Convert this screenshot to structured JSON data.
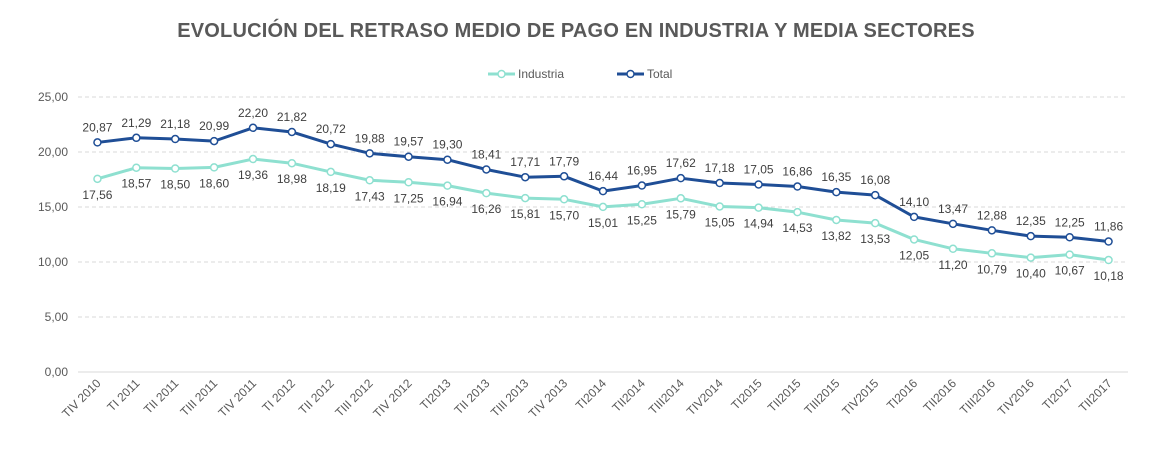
{
  "chart_data": {
    "type": "line",
    "title": "EVOLUCIÓN DEL RETRASO MEDIO DE PAGO EN INDUSTRIA Y MEDIA SECTORES",
    "categories": [
      "TIV 2010",
      "TI 2011",
      "TII 2011",
      "TIII 2011",
      "TIV 2011",
      "TI 2012",
      "TII 2012",
      "TIII 2012",
      "TIV 2012",
      "TI2013",
      "TII 2013",
      "TIII 2013",
      "TIV 2013",
      "TI2014",
      "TII2014",
      "TIII2014",
      "TIV2014",
      "TI2015",
      "TII2015",
      "TIII2015",
      "TIV2015",
      "TI2016",
      "TII2016",
      "TIII2016",
      "TIV2016",
      "TI2017",
      "TII2017"
    ],
    "series": [
      {
        "name": "Industria",
        "color": "#8ee0d0",
        "values": [
          17.56,
          18.57,
          18.5,
          18.6,
          19.36,
          18.98,
          18.19,
          17.43,
          17.25,
          16.94,
          16.26,
          15.81,
          15.7,
          15.01,
          15.25,
          15.79,
          15.05,
          14.94,
          14.53,
          13.82,
          13.53,
          12.05,
          11.2,
          10.79,
          10.4,
          10.67,
          10.18
        ],
        "labels": [
          "17,56",
          "18,57",
          "18,50",
          "18,60",
          "19,36",
          "18,98",
          "18,19",
          "17,43",
          "17,25",
          "16,94",
          "16,26",
          "15,81",
          "15,70",
          "15,01",
          "15,25",
          "15,79",
          "15,05",
          "14,94",
          "14,53",
          "13,82",
          "13,53",
          "12,05",
          "11,20",
          "10,79",
          "10,40",
          "10,67",
          "10,18"
        ]
      },
      {
        "name": "Total",
        "color": "#1f4e96",
        "values": [
          20.87,
          21.29,
          21.18,
          20.99,
          22.2,
          21.82,
          20.72,
          19.88,
          19.57,
          19.3,
          18.41,
          17.71,
          17.79,
          16.44,
          16.95,
          17.62,
          17.18,
          17.05,
          16.86,
          16.35,
          16.08,
          14.1,
          13.47,
          12.88,
          12.35,
          12.25,
          11.86
        ],
        "labels": [
          "20,87",
          "21,29",
          "21,18",
          "20,99",
          "22,20",
          "21,82",
          "20,72",
          "19,88",
          "19,57",
          "19,30",
          "18,41",
          "17,71",
          "17,79",
          "16,44",
          "16,95",
          "17,62",
          "17,18",
          "17,05",
          "16,86",
          "16,35",
          "16,08",
          "14,10",
          "13,47",
          "12,88",
          "12,35",
          "12,25",
          "11,86"
        ]
      }
    ],
    "ylim": [
      0,
      25
    ],
    "yticks": [
      0,
      5,
      10,
      15,
      20,
      25
    ],
    "ytick_labels": [
      "0,00",
      "5,00",
      "10,00",
      "15,00",
      "20,00",
      "25,00"
    ],
    "grid": true,
    "grid_style": "dashed",
    "legend": "top-center"
  }
}
